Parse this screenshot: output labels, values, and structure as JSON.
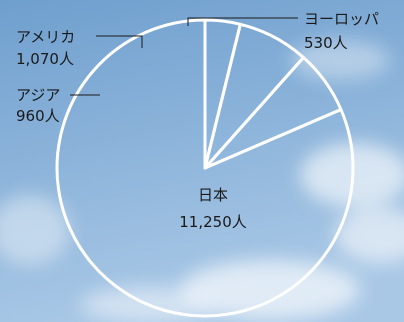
{
  "chart_data": {
    "type": "pie",
    "title": "",
    "unit": "人",
    "start_angle_deg": 0,
    "direction": "counterclockwise",
    "slices": [
      {
        "name": "日本",
        "value_label": "11,250人",
        "value": 11250
      },
      {
        "name": "アジア",
        "value_label": "960人",
        "value": 960
      },
      {
        "name": "アメリカ",
        "value_label": "1,070人",
        "value": 1070
      },
      {
        "name": "ヨーロッパ",
        "value_label": "530人",
        "value": 530
      }
    ]
  },
  "colors": {
    "sky_top": "#6f9fce",
    "sky_bottom": "#a9c8e6",
    "cloud": "#eef4fa",
    "outline": "#ffffff",
    "label_text": "#1a1a1a"
  }
}
